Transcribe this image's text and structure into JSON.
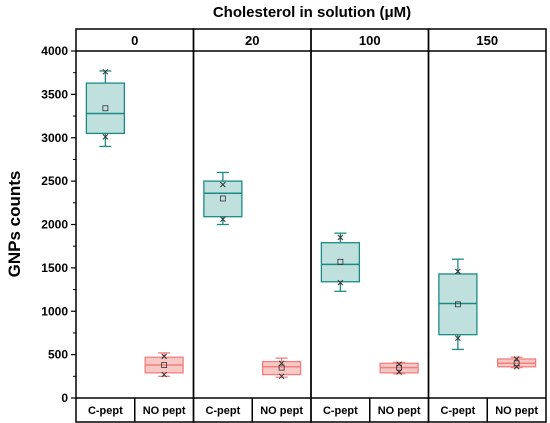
{
  "chart_data": {
    "type": "box",
    "title": "Cholesterol in solution (μM)",
    "ylabel": "GNPs counts",
    "xlabel": "",
    "ylim": [
      0,
      4000
    ],
    "yticks": [
      0,
      500,
      1000,
      1500,
      2000,
      2500,
      3000,
      3500,
      4000
    ],
    "groups": [
      "0",
      "20",
      "100",
      "150"
    ],
    "categories": [
      "C-pept",
      "NO pept"
    ],
    "grid": false,
    "colors": {
      "C-pept": {
        "fill": "#bfe0dd",
        "stroke": "#1c8a84"
      },
      "NO pept": {
        "fill": "#f8c8c4",
        "stroke": "#f08080"
      }
    },
    "boxes": [
      {
        "group": "0",
        "category": "C-pept",
        "whisker_low": 2900,
        "q1": 3050,
        "median": 3280,
        "q3": 3630,
        "whisker_high": 3770,
        "mean": 3340,
        "extremes": [
          3010,
          3760
        ]
      },
      {
        "group": "0",
        "category": "NO pept",
        "whisker_low": 250,
        "q1": 290,
        "median": 380,
        "q3": 470,
        "whisker_high": 520,
        "mean": 380,
        "extremes": [
          270,
          480
        ]
      },
      {
        "group": "20",
        "category": "C-pept",
        "whisker_low": 2000,
        "q1": 2090,
        "median": 2360,
        "q3": 2500,
        "whisker_high": 2600,
        "mean": 2300,
        "extremes": [
          2060,
          2460
        ]
      },
      {
        "group": "20",
        "category": "NO pept",
        "whisker_low": 240,
        "q1": 270,
        "median": 360,
        "q3": 420,
        "whisker_high": 460,
        "mean": 350,
        "extremes": [
          250,
          400
        ]
      },
      {
        "group": "100",
        "category": "C-pept",
        "whisker_low": 1230,
        "q1": 1340,
        "median": 1540,
        "q3": 1790,
        "whisker_high": 1900,
        "mean": 1570,
        "extremes": [
          1330,
          1850
        ]
      },
      {
        "group": "100",
        "category": "NO pept",
        "whisker_low": 280,
        "q1": 290,
        "median": 350,
        "q3": 400,
        "whisker_high": 410,
        "mean": 350,
        "extremes": [
          300,
          390
        ]
      },
      {
        "group": "150",
        "category": "C-pept",
        "whisker_low": 560,
        "q1": 730,
        "median": 1090,
        "q3": 1430,
        "whisker_high": 1600,
        "mean": 1080,
        "extremes": [
          690,
          1460
        ]
      },
      {
        "group": "150",
        "category": "NO pept",
        "whisker_low": 350,
        "q1": 360,
        "median": 400,
        "q3": 450,
        "whisker_high": 470,
        "mean": 400,
        "extremes": [
          360,
          450
        ]
      }
    ]
  }
}
